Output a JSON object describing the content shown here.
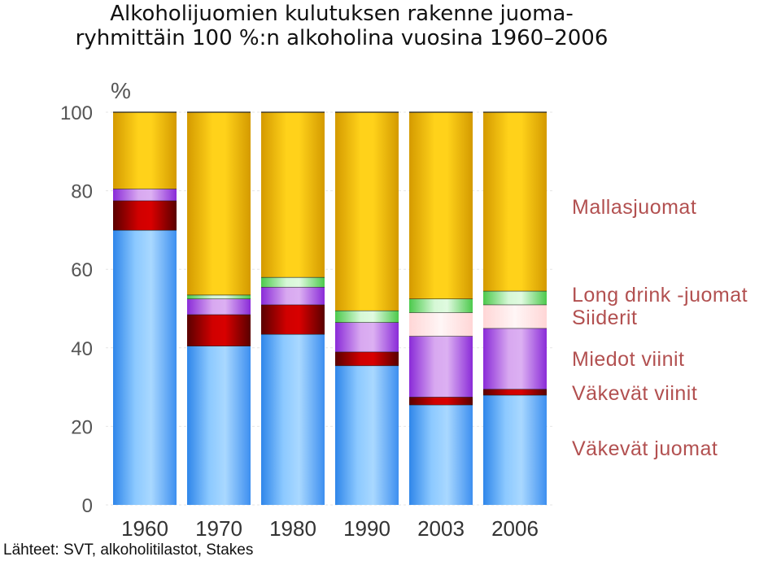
{
  "chart_data": {
    "type": "bar",
    "stacked": true,
    "title_lines": [
      "Alkoholijuomien kulutuksen rakenne juoma-",
      "ryhmittäin 100 %:n alkoholina vuosina 1960–2006"
    ],
    "ylabel": "%",
    "ylim": [
      0,
      100
    ],
    "yticks": [
      0,
      20,
      40,
      60,
      80,
      100
    ],
    "categories": [
      "1960",
      "1970",
      "1980",
      "1990",
      "2003",
      "2006"
    ],
    "series": [
      {
        "name": "Väkevät juomat",
        "color": "#6ab8ff",
        "values": [
          70,
          40.5,
          43.5,
          35.5,
          25.5,
          28
        ]
      },
      {
        "name": "Väkevät viinit",
        "color": "#b80000",
        "values": [
          7.5,
          8,
          7.5,
          3.5,
          2,
          1.5
        ]
      },
      {
        "name": "Miedot viinit",
        "color": "#b96ee0",
        "values": [
          3,
          4,
          4.5,
          7.5,
          15.5,
          15.5
        ]
      },
      {
        "name": "Siiderit",
        "color": "#ffe8e8",
        "values": [
          0,
          0,
          0,
          0,
          6,
          6
        ]
      },
      {
        "name": "Long drink -juomat",
        "color": "#7fe07f",
        "values": [
          0,
          1,
          2.5,
          3,
          3.5,
          3.5
        ]
      },
      {
        "name": "Mallasjuomat",
        "color": "#f2c200",
        "values": [
          19.5,
          46.5,
          42,
          50.5,
          47.5,
          45.5
        ]
      }
    ],
    "legend": {
      "placement": "right",
      "labels": [
        "Mallasjuomat",
        "Long drink -juomat",
        "Siiderit",
        "Miedot viinit",
        "Väkevät viinit",
        "Väkevät juomat"
      ]
    },
    "grid": true
  },
  "source": "Lähteet: SVT, alkoholitilastot, Stakes"
}
